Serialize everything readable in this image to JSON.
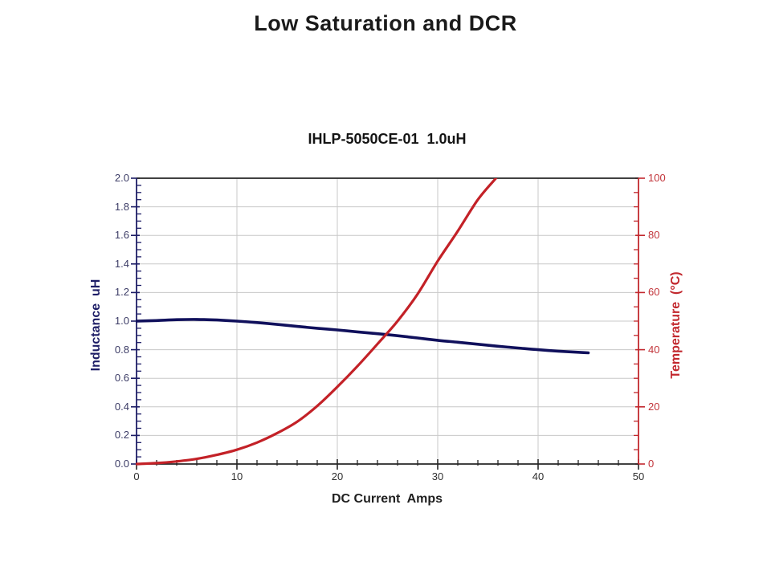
{
  "page": {
    "title": "Low Saturation and DCR"
  },
  "chart": {
    "subtitle": "IHLP-5050CE-01  1.0uH",
    "x_axis_title": "DC Current  Amps",
    "y_left_axis_title": "Inductance  uH",
    "y_right_axis_title": "Temperature  (°C)"
  },
  "colors": {
    "title": "#1a1a1a",
    "grid": "#c8c8c8",
    "left_axis": "#1d1d66",
    "right_axis": "#c2282e",
    "bottom_axis": "#262626",
    "top_axis": "#262626",
    "inductance_line": "#10105c",
    "temperature_line": "#c32127"
  },
  "chart_data": {
    "type": "line",
    "title": "IHLP-5050CE-01  1.0uH",
    "xlabel": "DC Current Amps",
    "ylabel_left": "Inductance uH",
    "ylabel_right": "Temperature (°C)",
    "xlim": [
      0,
      50
    ],
    "ylim_left": [
      0.0,
      2.0
    ],
    "ylim_right": [
      0,
      100
    ],
    "grid": true,
    "legend": "none",
    "x_ticks": {
      "values": [
        0,
        10,
        20,
        30,
        40,
        50
      ],
      "labels": [
        "0",
        "10",
        "20",
        "30",
        "40",
        "50"
      ],
      "minor_step": 2
    },
    "y_left_ticks": {
      "values": [
        0.0,
        0.2,
        0.4,
        0.6,
        0.8,
        1.0,
        1.2,
        1.4,
        1.6,
        1.8,
        2.0
      ],
      "labels": [
        "0.0",
        "0.2",
        "0.4",
        "0.6",
        "0.8",
        "1.0",
        "1.2",
        "1.4",
        "1.6",
        "1.8",
        "2.0"
      ],
      "minor_step": 0.05
    },
    "y_right_ticks": {
      "values": [
        0,
        20,
        40,
        60,
        80,
        100
      ],
      "labels": [
        "0",
        "20",
        "40",
        "60",
        "80",
        "100"
      ],
      "minor_step": 5
    },
    "series": [
      {
        "name": "Inductance uH",
        "axis": "left",
        "color_key": "inductance_line",
        "x": [
          0,
          2,
          4,
          6,
          8,
          10,
          12,
          14,
          16,
          18,
          20,
          22,
          24,
          26,
          28,
          30,
          32,
          34,
          36,
          38,
          40,
          42,
          44,
          45
        ],
        "y": [
          1.0,
          1.004,
          1.01,
          1.012,
          1.008,
          1.0,
          0.99,
          0.977,
          0.963,
          0.95,
          0.938,
          0.925,
          0.912,
          0.898,
          0.882,
          0.866,
          0.852,
          0.838,
          0.824,
          0.812,
          0.8,
          0.79,
          0.782,
          0.778
        ]
      },
      {
        "name": "Temperature (°C)",
        "axis": "right",
        "color_key": "temperature_line",
        "x": [
          0,
          2,
          4,
          6,
          8,
          10,
          12,
          14,
          16,
          18,
          20,
          22,
          24,
          26,
          28,
          30,
          32,
          34,
          35.8
        ],
        "y": [
          0,
          0.3,
          0.9,
          1.8,
          3.2,
          5.0,
          7.5,
          10.8,
          14.8,
          20.3,
          27.0,
          34.2,
          42.0,
          50.0,
          59.5,
          71.0,
          81.5,
          92.5,
          100
        ]
      }
    ]
  }
}
